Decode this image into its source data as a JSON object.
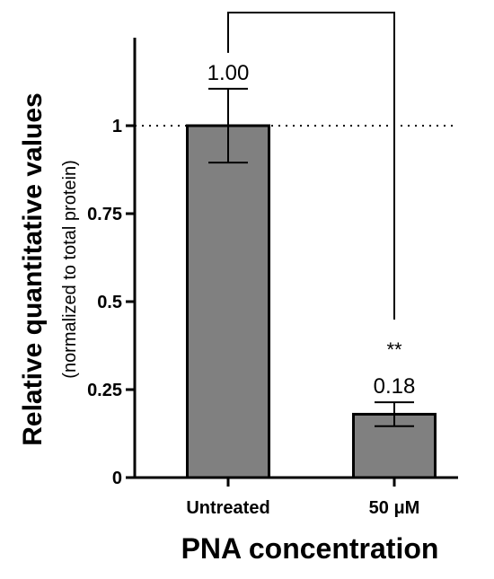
{
  "chart_data": {
    "type": "bar",
    "categories": [
      "Untreated",
      "50 μM"
    ],
    "values": [
      1.0,
      0.18
    ],
    "error": [
      0.105,
      0.034
    ],
    "data_labels": [
      "1.00",
      "0.18"
    ],
    "significance": "**",
    "reference_line": 1,
    "ylim": [
      0,
      1.25
    ],
    "yticks": [
      0,
      0.25,
      0.5,
      0.75,
      1
    ],
    "ytick_labels": [
      "0",
      "0.25",
      "0.5",
      "0.75",
      "1"
    ],
    "ylabel": "Relative quantitative values",
    "ylabel_sub": "(normalized to total protein)",
    "xlabel": "PNA concentration",
    "bar_color": "#808080",
    "grid": false
  }
}
